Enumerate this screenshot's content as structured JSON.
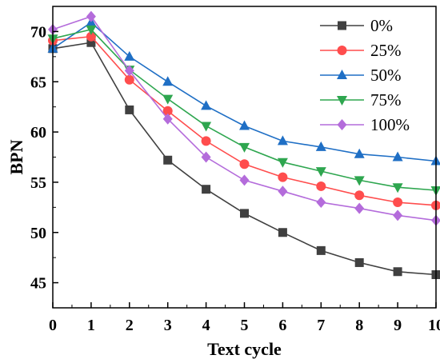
{
  "chart_data": {
    "type": "line",
    "xlabel": "Text cycle",
    "ylabel": "BPN",
    "xlim": [
      0,
      10
    ],
    "ylim": [
      42.5,
      72.5
    ],
    "xticks": [
      0,
      1,
      2,
      3,
      4,
      5,
      6,
      7,
      8,
      9,
      10
    ],
    "yticks": [
      45,
      50,
      55,
      60,
      65,
      70
    ],
    "grid": false,
    "legend_position": "top-right",
    "x": [
      0,
      1,
      2,
      3,
      4,
      5,
      6,
      7,
      8,
      9,
      10
    ],
    "series": [
      {
        "name": "0%",
        "color": "#404040",
        "marker": "square",
        "values": [
          68.3,
          68.9,
          62.2,
          57.2,
          54.3,
          51.9,
          50.0,
          48.2,
          47.0,
          46.1,
          45.8
        ]
      },
      {
        "name": "25%",
        "color": "#ff4d4d",
        "marker": "circle",
        "values": [
          69.1,
          69.5,
          65.2,
          62.1,
          59.1,
          56.8,
          55.5,
          54.6,
          53.7,
          53.0,
          52.7
        ]
      },
      {
        "name": "50%",
        "color": "#1f6fc5",
        "marker": "triangle-up",
        "values": [
          68.3,
          70.9,
          67.5,
          65.0,
          62.6,
          60.6,
          59.1,
          58.5,
          57.8,
          57.5,
          57.1
        ]
      },
      {
        "name": "75%",
        "color": "#2ea64f",
        "marker": "triangle-down",
        "values": [
          69.3,
          70.2,
          66.2,
          63.3,
          60.6,
          58.5,
          57.0,
          56.1,
          55.2,
          54.5,
          54.2
        ]
      },
      {
        "name": "100%",
        "color": "#b46cdb",
        "marker": "diamond",
        "values": [
          70.2,
          71.5,
          66.1,
          61.3,
          57.5,
          55.2,
          54.1,
          53.0,
          52.4,
          51.7,
          51.2
        ]
      }
    ]
  }
}
